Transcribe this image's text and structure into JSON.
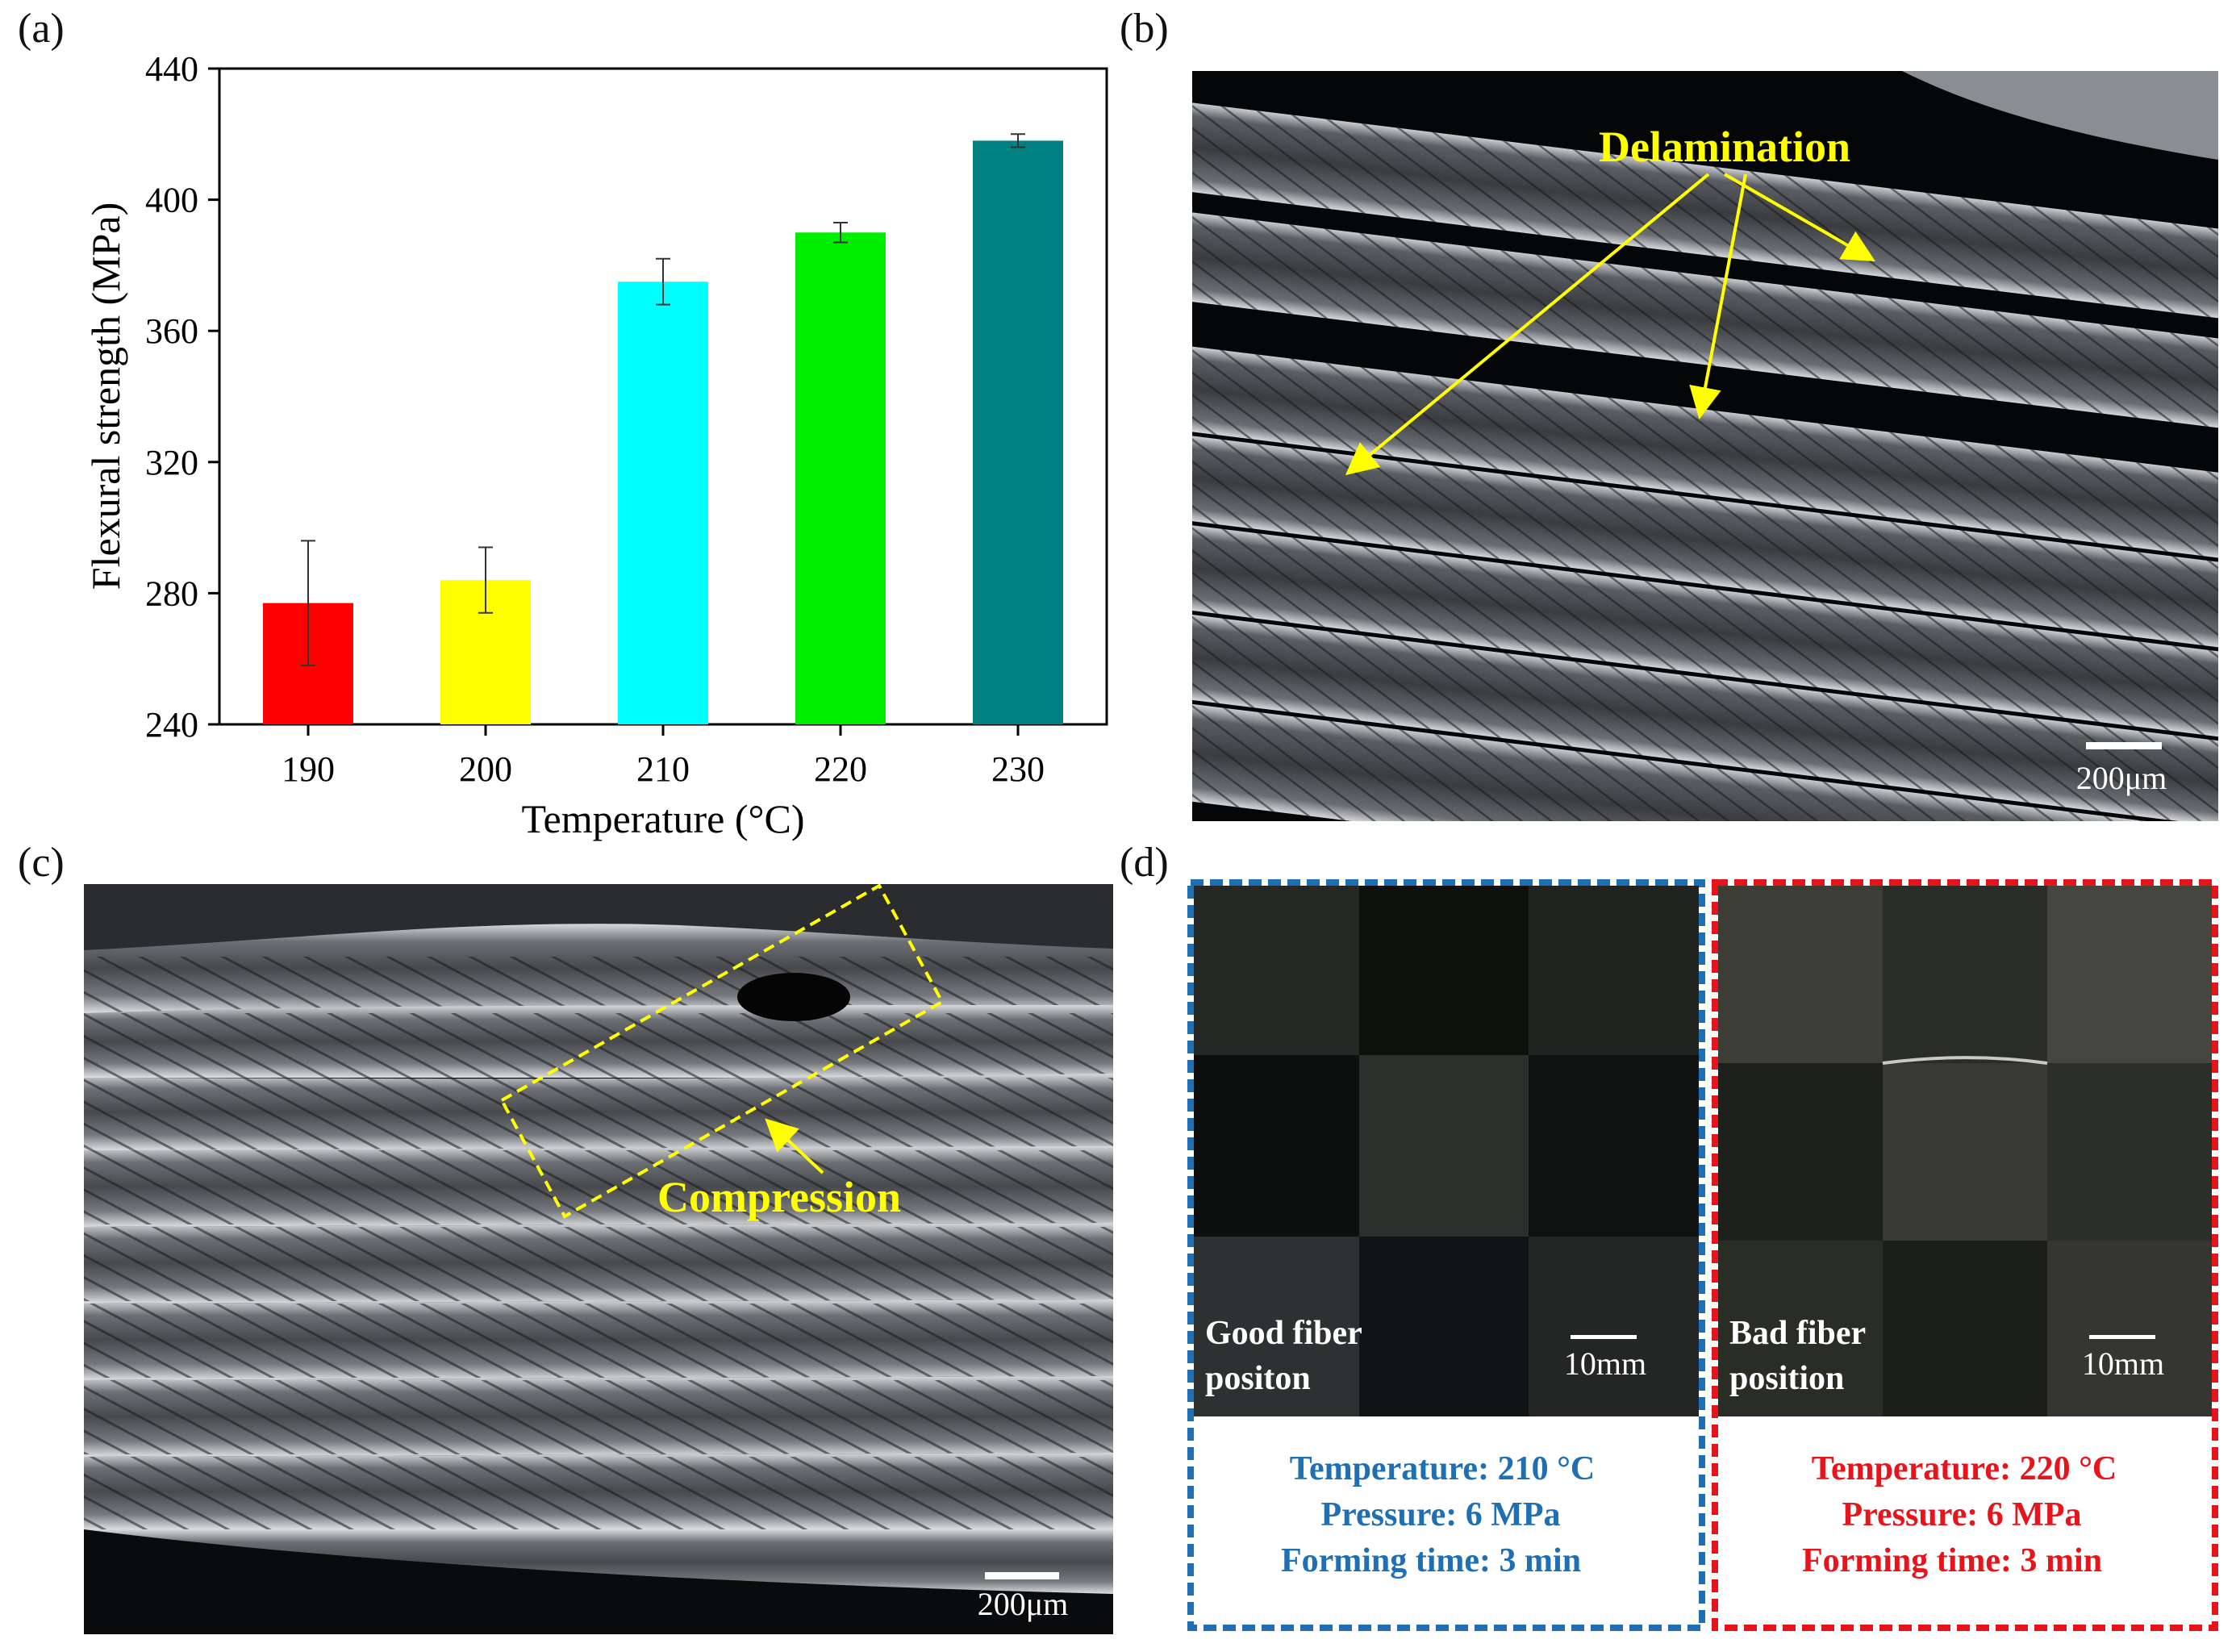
{
  "panels": {
    "a": "(a)",
    "b": "(b)",
    "c": "(c)",
    "d": "(d)"
  },
  "chart_data": {
    "type": "bar",
    "title": "",
    "xlabel": "Temperature (°C)",
    "ylabel": "Flexural strength (MPa)",
    "categories": [
      "190",
      "200",
      "210",
      "220",
      "230"
    ],
    "values": [
      277,
      284,
      375,
      390,
      418
    ],
    "errors": [
      19,
      10,
      7,
      3,
      2
    ],
    "colors": [
      "#ff0000",
      "#ffff00",
      "#00ffff",
      "#00ee00",
      "#008080"
    ],
    "ylim": [
      240,
      440
    ],
    "yticks": [
      240,
      280,
      320,
      360,
      400,
      440
    ],
    "grid": false,
    "legend": "none"
  },
  "micrograph_b": {
    "annotation": "Delamination",
    "scale_bar": "200μm"
  },
  "micrograph_c": {
    "annotation": "Compression",
    "scale_bar": "200μm"
  },
  "panel_d": {
    "good": {
      "label_line1": "Good fiber",
      "label_line2": "positon",
      "scale_bar": "10mm",
      "temperature": "Temperature: 210 °C",
      "pressure": "Pressure: 6 MPa",
      "forming_time": "Forming time: 3 min",
      "color": "#1f6fb5"
    },
    "bad": {
      "label_line1": "Bad fiber",
      "label_line2": "position",
      "scale_bar": "10mm",
      "temperature": "Temperature: 220 °C",
      "pressure": "Pressure: 6 MPa",
      "forming_time": "Forming time: 3 min",
      "color": "#e8141b"
    }
  },
  "colors": {
    "annotation_yellow": "#ffff00"
  }
}
